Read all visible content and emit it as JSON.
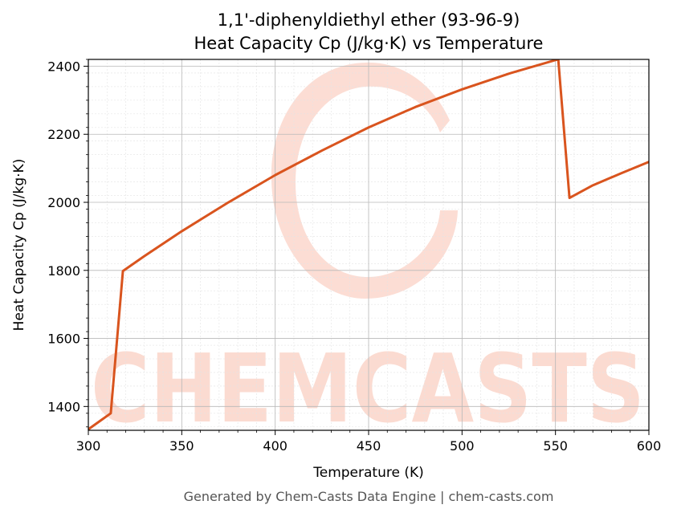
{
  "chart_data": {
    "type": "line",
    "title_line1": "1,1'-diphenyldiethyl ether (93-96-9)",
    "title_line2": "Heat Capacity Cp (J/kg·K) vs Temperature",
    "xlabel": "Temperature (K)",
    "ylabel": "Heat Capacity Cp (J/kg·K)",
    "xlim": [
      300,
      600
    ],
    "ylim": [
      1330,
      2420
    ],
    "xticks": [
      300,
      350,
      400,
      450,
      500,
      550,
      600
    ],
    "yticks": [
      1400,
      1600,
      1800,
      2000,
      2200,
      2400
    ],
    "grid": true,
    "line_color": "#d9541e",
    "series": [
      {
        "x": [
          300,
          312,
          318.5,
          330,
          350,
          375,
          400,
          425,
          450,
          475,
          500,
          525,
          550,
          551.5,
          557.5,
          570,
          585,
          600
        ],
        "y": [
          1333,
          1380,
          1798,
          1842,
          1915,
          2000,
          2080,
          2152,
          2220,
          2280,
          2332,
          2378,
          2418,
          2420,
          2013,
          2050,
          2085,
          2119
        ]
      }
    ]
  },
  "watermark": {
    "text": "CHEMCASTS",
    "color": "#fbd5c9"
  },
  "footer": "Generated by Chem-Casts Data Engine | chem-casts.com"
}
